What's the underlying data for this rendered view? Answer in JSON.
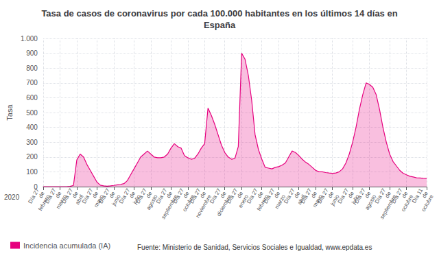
{
  "chart_data": {
    "type": "area",
    "title": "Tasa de casos de coronavirus por cada 100.000 habitantes en los últimos 14 días en\nEspaña",
    "y_label": "Tasa",
    "annotations": [
      "2020",
      "Fuente: Ministerio de Sanidad, Servicios Sociales e Igualdad, www.epdata.es"
    ],
    "categories": [
      "Día 27\nde\nfebrero",
      null,
      null,
      null,
      null,
      "Día 27\nde\nmarzo",
      null,
      null,
      null,
      null,
      "Día 27\nde\nabril",
      null,
      null,
      null,
      null,
      null,
      "Día 27\nde\nmayo",
      null,
      null,
      null,
      null,
      "Día 27\nde\njunio",
      null,
      null,
      null,
      null,
      null,
      "Día 27\nde\njulio",
      null,
      null,
      null,
      null,
      "Día 27\nde\nagosto",
      null,
      null,
      null,
      null,
      null,
      "Día 27\nde\nseptiembre",
      null,
      null,
      null,
      null,
      "Día 27\nde\noctubre",
      null,
      null,
      null,
      null,
      "Día 27\nde\nnoviembre",
      null,
      null,
      null,
      null,
      null,
      "Día 27\nde\ndiciembre",
      null,
      null,
      null,
      null,
      "Día 27\nde\nenero",
      null,
      null,
      null,
      null,
      null,
      "Día 27\nde\nfebrero",
      null,
      null,
      null,
      null,
      "Día 27\nde\nmarzo",
      null,
      null,
      null,
      null,
      null,
      "Día 27\nde\nabril",
      null,
      null,
      null,
      null,
      "Día 27\nde\nmayo",
      null,
      null,
      null,
      null,
      "Día 27\nde\njunio",
      null,
      null,
      null,
      null,
      null,
      "Día 27\nde\njulio",
      null,
      null,
      null,
      null,
      "Día 27\nde\nagosto",
      null,
      null,
      null,
      null,
      null,
      "Día 27\nde\nseptiembre",
      null,
      null,
      null,
      null,
      "Día 27\nde\noctubre",
      null,
      null,
      null,
      null,
      null,
      "Día 11\nde\noctubre"
    ],
    "series": [
      {
        "name": "Incidencia acumulada (IA)",
        "color": "#e6007e",
        "values": [
          0,
          0,
          0,
          0,
          0,
          0,
          0,
          0,
          2,
          8,
          180,
          220,
          200,
          150,
          110,
          70,
          30,
          10,
          5,
          3,
          5,
          8,
          12,
          15,
          20,
          40,
          80,
          120,
          160,
          200,
          220,
          240,
          220,
          200,
          195,
          195,
          200,
          220,
          260,
          290,
          270,
          260,
          210,
          195,
          185,
          190,
          220,
          260,
          290,
          530,
          480,
          420,
          350,
          280,
          230,
          200,
          185,
          190,
          270,
          900,
          860,
          750,
          580,
          350,
          250,
          185,
          130,
          125,
          120,
          130,
          135,
          145,
          160,
          200,
          240,
          230,
          210,
          185,
          165,
          150,
          130,
          110,
          100,
          100,
          95,
          92,
          90,
          92,
          100,
          120,
          160,
          220,
          300,
          400,
          520,
          620,
          700,
          690,
          670,
          620,
          520,
          400,
          300,
          220,
          170,
          140,
          110,
          90,
          80,
          70,
          65,
          60,
          58,
          56,
          55
        ]
      }
    ],
    "ylim": [
      0,
      1000
    ],
    "yticks": [
      0,
      100,
      200,
      300,
      400,
      500,
      600,
      700,
      800,
      900,
      {
        "value": 1000,
        "label": "1.000"
      }
    ],
    "grid": true,
    "legend": "bottom"
  }
}
